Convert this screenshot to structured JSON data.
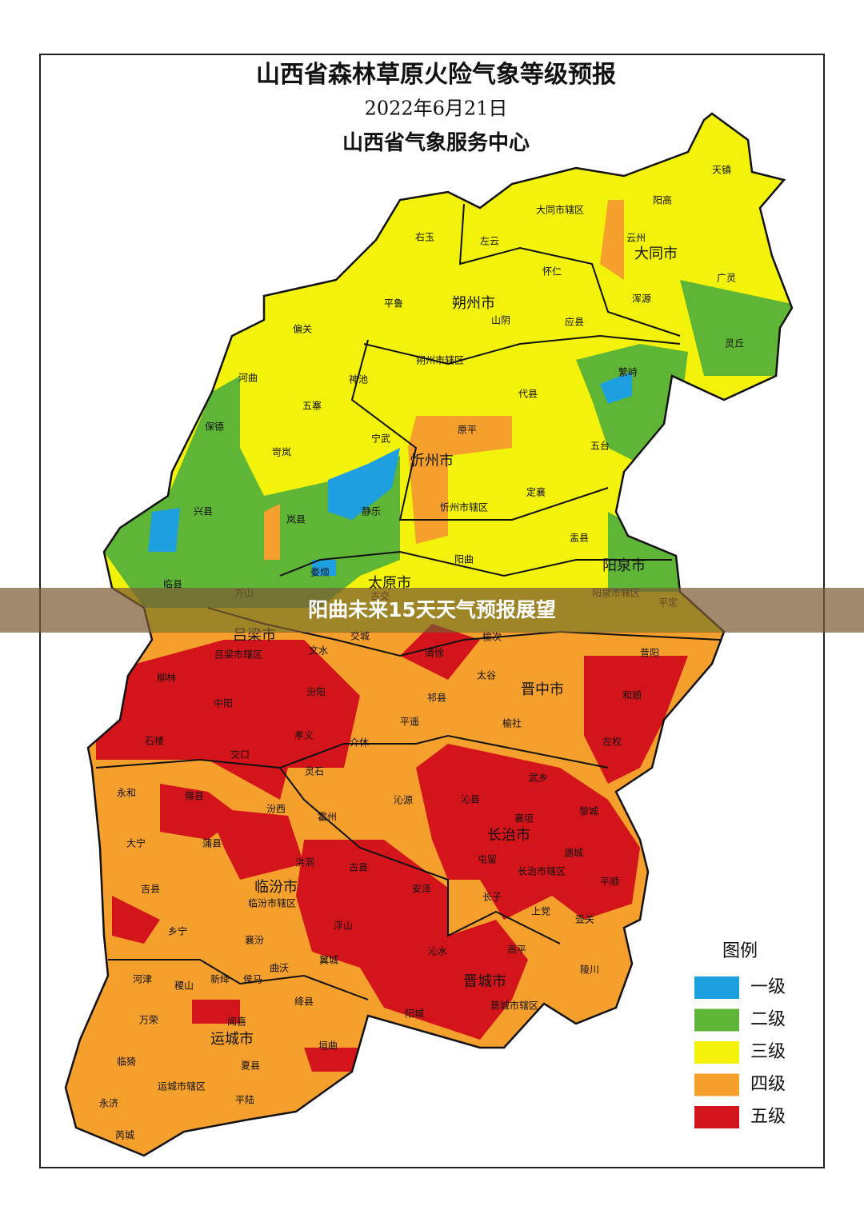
{
  "header": {
    "title": "山西省森林草原火险气象等级预报",
    "date": "2022年6月21日",
    "agency": "山西省气象服务中心"
  },
  "cities": [
    "大同市",
    "朔州市",
    "忻州市",
    "太原市",
    "阳泉市",
    "吕梁市",
    "晋中市",
    "长治市",
    "临汾市",
    "晋城市",
    "运城市"
  ],
  "counties": [
    "天镇",
    "阳高",
    "大同市辖区",
    "云州",
    "右玉",
    "左云",
    "怀仁",
    "广灵",
    "浑源",
    "平鲁",
    "山阴",
    "应县",
    "偏关",
    "灵丘",
    "朔州市辖区",
    "河曲",
    "神池",
    "繁峙",
    "代县",
    "五寨",
    "保德",
    "原平",
    "宁武",
    "五台",
    "岢岚",
    "兴县",
    "静乐",
    "岚县",
    "忻州市辖区",
    "定襄",
    "盂县",
    "阳曲",
    "临县",
    "娄烦",
    "方山",
    "阳泉市辖区",
    "平定",
    "古交",
    "文水",
    "清徐",
    "交城",
    "榆次",
    "昔阳",
    "吕梁市辖区",
    "太谷",
    "和顺",
    "柳林",
    "中阳",
    "汾阳",
    "祁县",
    "平遥",
    "榆社",
    "左权",
    "石楼",
    "孝义",
    "介休",
    "交口",
    "灵石",
    "永和",
    "隰县",
    "沁源",
    "沁县",
    "武乡",
    "黎城",
    "汾西",
    "霍州",
    "襄垣",
    "大宁",
    "蒲县",
    "潞城",
    "洪洞",
    "古县",
    "屯留",
    "长治市辖区",
    "吉县",
    "平顺",
    "安泽",
    "临汾市辖区",
    "长子",
    "上党",
    "壶关",
    "乡宁",
    "浮山",
    "襄汾",
    "沁水",
    "高平",
    "曲沃",
    "翼城",
    "陵川",
    "河津",
    "稷山",
    "新绛",
    "侯马",
    "绛县",
    "晋城市辖区",
    "阳城",
    "万荣",
    "闻喜",
    "垣曲",
    "夏县",
    "临猗",
    "运城市辖区",
    "平陆",
    "永济",
    "芮城"
  ],
  "legend": {
    "title": "图例",
    "items": [
      {
        "label": "一级",
        "color": "#1e9fe0"
      },
      {
        "label": "二级",
        "color": "#5fb536"
      },
      {
        "label": "三级",
        "color": "#f2f20a"
      },
      {
        "label": "四级",
        "color": "#f5a02c"
      },
      {
        "label": "五级",
        "color": "#d3141b"
      }
    ]
  },
  "banner": "阳曲未来15天天气预报展望"
}
